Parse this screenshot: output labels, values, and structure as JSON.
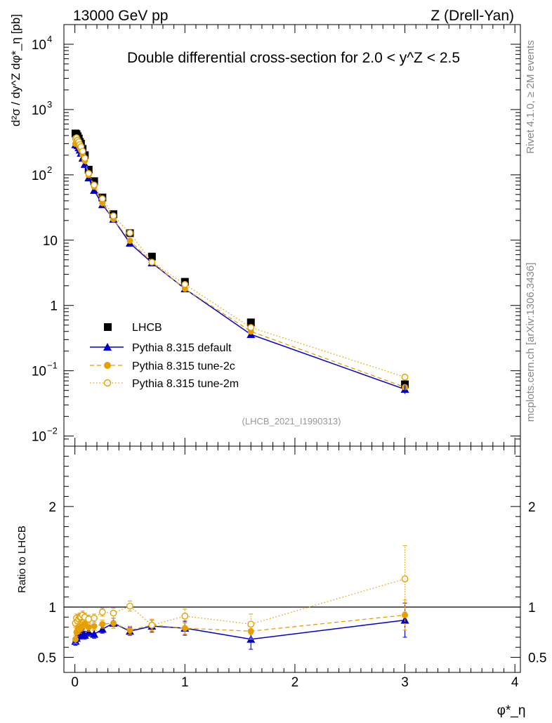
{
  "header": {
    "energy_label": "13000 GeV pp",
    "process_label": "Z (Drell-Yan)",
    "plot_title": "Double differential cross-section for 2.0 < y^Z < 2.5",
    "ref_tag": "(LHCB_2021_I1990313)",
    "side_rivet": "Rivet 4.1.0, ≥ 2M events",
    "side_mcplots": "mcplots.cern.ch [arXiv:1306.3436]"
  },
  "chart_data": [
    {
      "type": "scatter",
      "panel": "main",
      "xlabel": "φ*_η",
      "ylabel": "d²σ / dy^Z dφ*_η [pb]",
      "yscale": "log",
      "xlim": [
        -0.1,
        4.05
      ],
      "ylim": [
        0.007,
        20000
      ],
      "xticks": [
        "0",
        "1",
        "2",
        "3",
        "4"
      ],
      "yticks": [
        "10^-2",
        "10^-1",
        "1",
        "10",
        "10^2",
        "10^3",
        "10^4"
      ],
      "legend_position": "center-left",
      "x": [
        0.005,
        0.015,
        0.025,
        0.035,
        0.045,
        0.055,
        0.07,
        0.09,
        0.125,
        0.175,
        0.25,
        0.35,
        0.5,
        0.7,
        1.0,
        1.6,
        3.0
      ],
      "series": [
        {
          "name": "LHCB",
          "color": "#000000",
          "marker": "square",
          "values": [
            430,
            420,
            390,
            360,
            320,
            300,
            250,
            200,
            120,
            80,
            45,
            25,
            12.8,
            5.6,
            2.3,
            0.55,
            0.062
          ]
        },
        {
          "name": "Pythia 8.315 default",
          "color": "#0000cc",
          "marker": "triangle",
          "line": "solid",
          "values": [
            290,
            300,
            280,
            260,
            240,
            215,
            180,
            145,
            90,
            58,
            35,
            21,
            9.0,
            4.5,
            1.8,
            0.36,
            0.052
          ]
        },
        {
          "name": "Pythia 8.315 tune-2c",
          "color": "#e69f00",
          "marker": "filled-circle",
          "line": "dashed",
          "values": [
            300,
            310,
            295,
            280,
            260,
            240,
            205,
            165,
            100,
            66,
            37,
            21,
            9.8,
            4.6,
            1.8,
            0.4,
            0.056
          ]
        },
        {
          "name": "Pythia 8.315 tune-2m",
          "color": "#e69f00",
          "marker": "open-circle",
          "line": "dotted",
          "values": [
            360,
            370,
            340,
            320,
            290,
            270,
            230,
            180,
            105,
            70,
            43,
            23.5,
            12.9,
            4.6,
            2.1,
            0.46,
            0.08
          ]
        }
      ]
    },
    {
      "type": "scatter",
      "panel": "ratio",
      "xlabel": "φ*_η",
      "ylabel": "Ratio to LHCB",
      "ylim": [
        0.35,
        2.6
      ],
      "xlim": [
        -0.1,
        4.05
      ],
      "yticks": [
        "0.5",
        "1",
        "2"
      ],
      "reference": 1.0,
      "x": [
        0.005,
        0.015,
        0.025,
        0.035,
        0.045,
        0.055,
        0.07,
        0.09,
        0.125,
        0.175,
        0.25,
        0.35,
        0.5,
        0.7,
        1.0,
        1.6,
        3.0
      ],
      "series": [
        {
          "name": "Pythia 8.315 default",
          "color": "#0000cc",
          "values": [
            0.66,
            0.69,
            0.72,
            0.72,
            0.75,
            0.72,
            0.74,
            0.72,
            0.75,
            0.73,
            0.78,
            0.84,
            0.76,
            0.81,
            0.79,
            0.68,
            0.87
          ],
          "errors": [
            0.04,
            0.04,
            0.04,
            0.04,
            0.04,
            0.04,
            0.04,
            0.04,
            0.04,
            0.04,
            0.04,
            0.05,
            0.04,
            0.06,
            0.07,
            0.1,
            0.17
          ]
        },
        {
          "name": "Pythia 8.315 tune-2c",
          "color": "#e69f00",
          "values": [
            0.68,
            0.75,
            0.77,
            0.79,
            0.78,
            0.8,
            0.81,
            0.83,
            0.8,
            0.81,
            0.83,
            0.84,
            0.77,
            0.82,
            0.79,
            0.76,
            0.92
          ],
          "errors": [
            0.04,
            0.04,
            0.04,
            0.04,
            0.04,
            0.04,
            0.04,
            0.04,
            0.04,
            0.04,
            0.04,
            0.05,
            0.04,
            0.05,
            0.06,
            0.08,
            0.15
          ]
        },
        {
          "name": "Pythia 8.315 tune-2m",
          "color": "#e69f00",
          "values": [
            0.84,
            0.89,
            0.86,
            0.88,
            0.9,
            0.9,
            0.92,
            0.9,
            0.88,
            0.89,
            0.95,
            0.94,
            1.01,
            0.82,
            0.91,
            0.83,
            1.28
          ],
          "errors": [
            0.04,
            0.04,
            0.04,
            0.04,
            0.04,
            0.04,
            0.04,
            0.04,
            0.04,
            0.04,
            0.04,
            0.05,
            0.05,
            0.06,
            0.07,
            0.1,
            0.33
          ]
        }
      ]
    }
  ]
}
